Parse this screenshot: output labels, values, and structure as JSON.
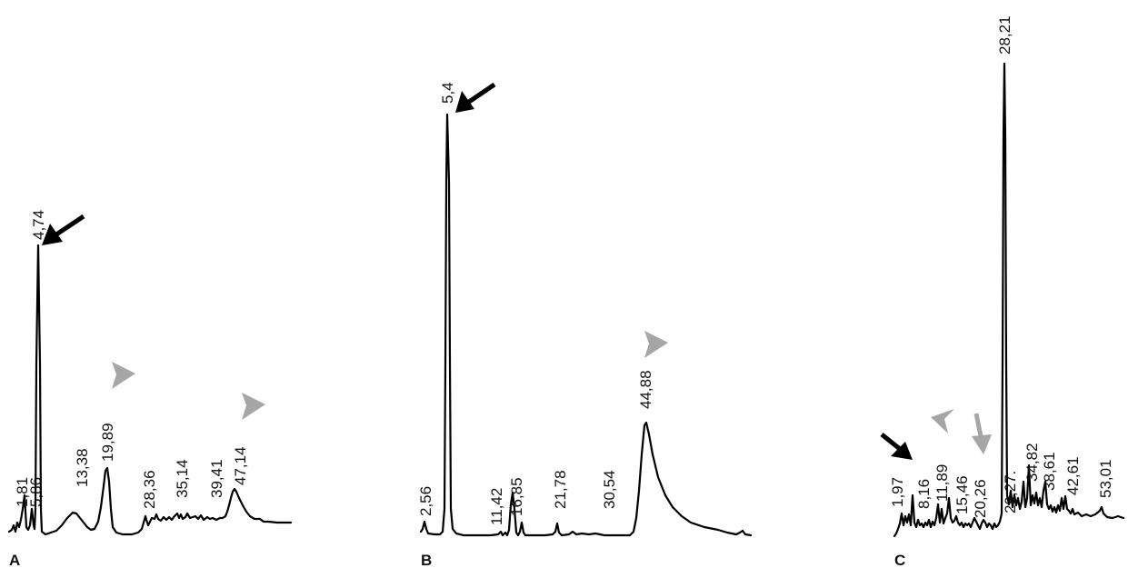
{
  "chart_data": [
    {
      "type": "line",
      "panel_label": "A",
      "peak_labels": [
        "1,81",
        "5,86",
        "4,74",
        "13,38",
        "19,89",
        "28,36",
        "35,14",
        "39,41",
        "47,14"
      ],
      "markers": [
        {
          "kind": "arrow",
          "color": "#000000",
          "points_to": "4,74"
        },
        {
          "kind": "arrowhead",
          "color": "#a6a6a6",
          "points_to": "19,89"
        },
        {
          "kind": "arrowhead",
          "color": "#a6a6a6",
          "points_to": "47,14"
        }
      ]
    },
    {
      "type": "line",
      "panel_label": "B",
      "peak_labels": [
        "2,56",
        "5,4",
        "11,42",
        "16,85",
        "21,78",
        "30,54",
        "44,88"
      ],
      "markers": [
        {
          "kind": "arrow",
          "color": "#000000",
          "points_to": "5,4"
        },
        {
          "kind": "arrowhead",
          "color": "#a6a6a6",
          "points_to": "44,88"
        }
      ]
    },
    {
      "type": "line",
      "panel_label": "C",
      "peak_labels": [
        "1,97",
        "8,16",
        "11,89",
        "15,46",
        "20,26",
        "28,21",
        "29,27.",
        "34,82",
        "38,61",
        "42,61",
        "53,01"
      ],
      "markers": [
        {
          "kind": "arrow",
          "color": "#000000",
          "points_to": "1,97"
        },
        {
          "kind": "arrowhead",
          "color": "#a6a6a6",
          "points_to": "11,89"
        },
        {
          "kind": "arrow",
          "color": "#a6a6a6",
          "points_to": "20,26"
        }
      ]
    }
  ]
}
